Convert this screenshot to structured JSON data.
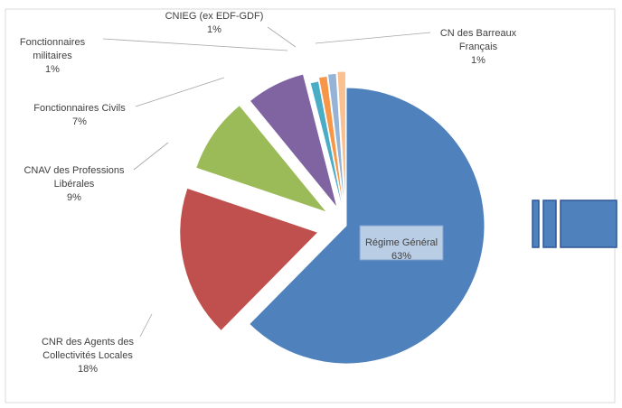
{
  "chart_data": {
    "type": "pie",
    "exploded": true,
    "start_angle_deg": 0,
    "direction": "clockwise",
    "slices": [
      {
        "label_lines": [
          "Régime Général"
        ],
        "value": 63,
        "value_text": "63%",
        "color": "#4F81BD",
        "label_placement": "inside-box"
      },
      {
        "label_lines": [
          "CNR des Agents des",
          "Collectivités Locales"
        ],
        "value": 18,
        "value_text": "18%",
        "color": "#C0504D",
        "label_placement": "outside"
      },
      {
        "label_lines": [
          "CNAV des Professions",
          "Libérales"
        ],
        "value": 9,
        "value_text": "9%",
        "color": "#9BBB59",
        "label_placement": "outside"
      },
      {
        "label_lines": [
          "Fonctionnaires Civils"
        ],
        "value": 7,
        "value_text": "7%",
        "color": "#8064A2",
        "label_placement": "outside"
      },
      {
        "label_lines": [
          "Fonctionnaires",
          "militaires"
        ],
        "value": 1,
        "value_text": "1%",
        "color": "#4BACC6",
        "label_placement": "outside"
      },
      {
        "label_lines": [
          "CNIEG (ex EDF-GDF)"
        ],
        "value": 1,
        "value_text": "1%",
        "color": "#F79646",
        "label_placement": "outside"
      },
      {
        "label_lines": [],
        "value": 1,
        "value_text": "",
        "color": "#95B3D7",
        "label_placement": "none"
      },
      {
        "label_lines": [
          "CN des Barreaux",
          "Français"
        ],
        "value": 1,
        "value_text": "1%",
        "color": "#FAC090",
        "label_placement": "outside"
      }
    ]
  },
  "decoration": {
    "arrow_color": "#4F81BD",
    "arrow_border": "#2F5597"
  }
}
